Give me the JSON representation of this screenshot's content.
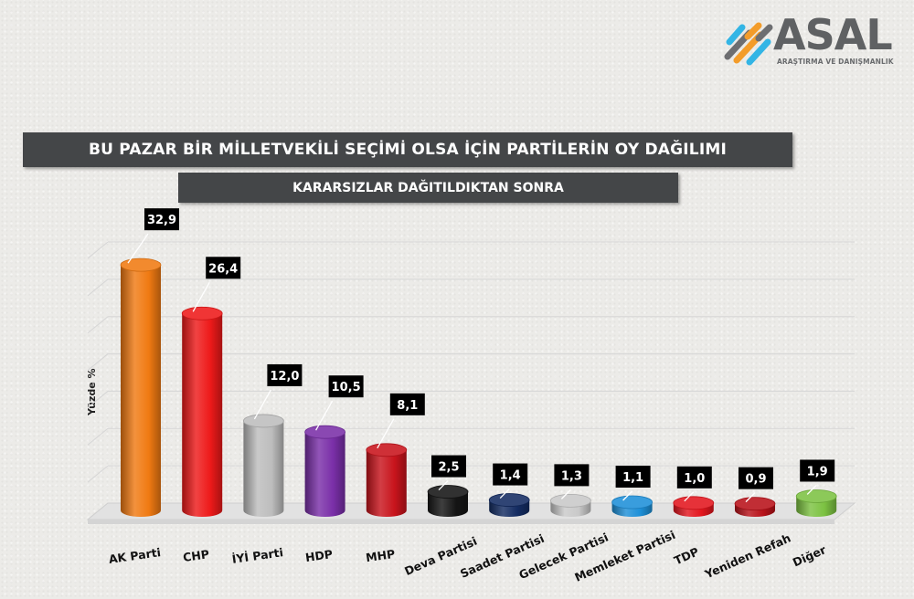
{
  "logo": {
    "name": "ASAL",
    "subtitle": "ARAŞTIRMA VE DANIŞMANLIK",
    "mark_colors": [
      "#33b5e5",
      "#f39c2a",
      "#6d6e71"
    ]
  },
  "chart_data": {
    "type": "bar",
    "title": "BU PAZAR BİR MİLLETVEKİLİ SEÇİMİ OLSA İÇİN PARTİLERİN OY DAĞILIMI",
    "subtitle": "KARARSIZLAR DAĞITILDIKTAN SONRA",
    "ylabel": "Yüzde %",
    "xlabel": "",
    "ylim": [
      0,
      35
    ],
    "grid": true,
    "legend": "none",
    "categories": [
      "AK Parti",
      "CHP",
      "İYİ Parti",
      "HDP",
      "MHP",
      "Deva Partisi",
      "Saadet Partisi",
      "Gelecek Partisi",
      "Memleket Partisi",
      "TDP",
      "Yeniden Refah",
      "Diğer"
    ],
    "values": [
      32.9,
      26.4,
      12.0,
      10.5,
      8.1,
      2.5,
      1.4,
      1.3,
      1.1,
      1.0,
      0.9,
      1.9
    ],
    "value_labels": [
      "32,9",
      "26,4",
      "12,0",
      "10,5",
      "8,1",
      "2,5",
      "1,4",
      "1,3",
      "1,1",
      "1,0",
      "0,9",
      "1,9"
    ],
    "colors": [
      "#f07a12",
      "#ee1a1a",
      "#bdbdbd",
      "#7a2fa8",
      "#c8141c",
      "#151515",
      "#142c62",
      "#c9c9c9",
      "#1e90d8",
      "#e3161e",
      "#b8121a",
      "#7cc242"
    ]
  }
}
